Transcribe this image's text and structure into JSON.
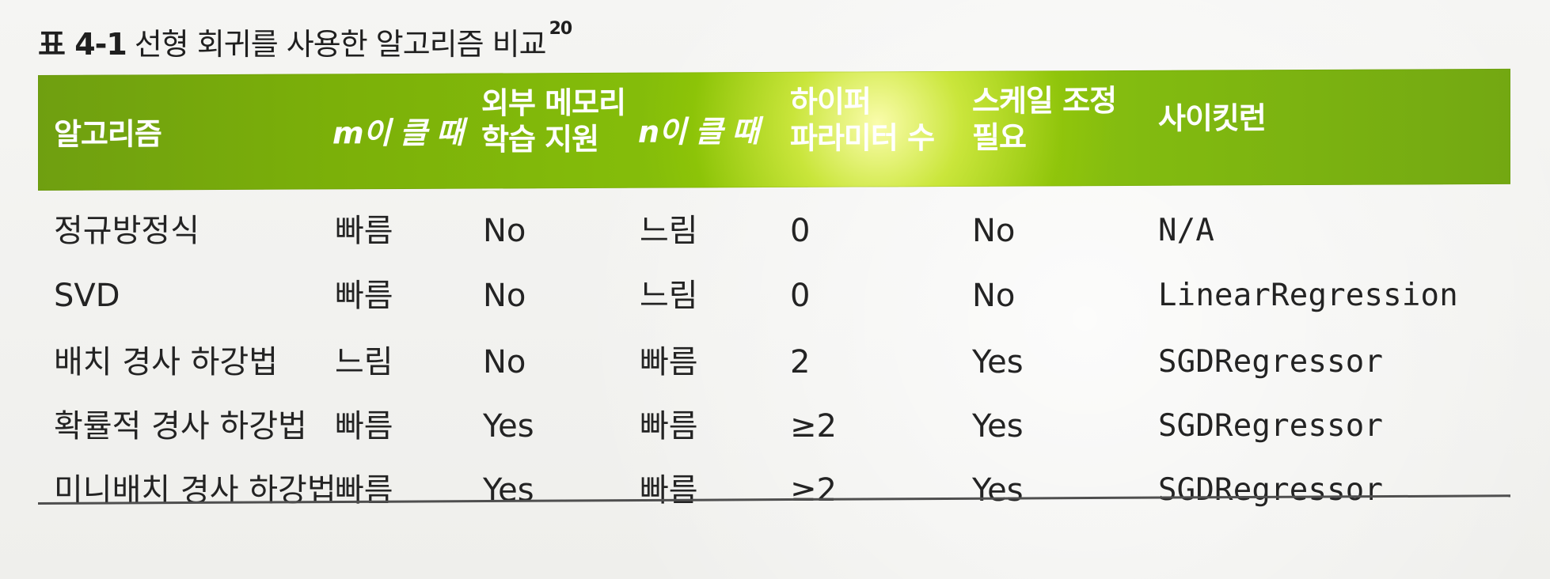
{
  "title": {
    "label": "표 4-1",
    "caption": "선형 회귀를 사용한 알고리즘 비교",
    "footnote": "20"
  },
  "table": {
    "headers": [
      "알고리즘",
      "m이 클 때",
      "외부 메모리\n학습 지원",
      "n이 클 때",
      "하이퍼\n파라미터 수",
      "스케일 조정\n필요",
      "사이킷런"
    ],
    "rows": [
      [
        "정규방정식",
        "빠름",
        "No",
        "느림",
        "0",
        "No",
        "N/A"
      ],
      [
        "SVD",
        "빠름",
        "No",
        "느림",
        "0",
        "No",
        "LinearRegression"
      ],
      [
        "배치 경사 하강법",
        "느림",
        "No",
        "빠름",
        "2",
        "Yes",
        "SGDRegressor"
      ],
      [
        "확률적 경사 하강법",
        "빠름",
        "Yes",
        "빠름",
        "≥2",
        "Yes",
        "SGDRegressor"
      ],
      [
        "미니배치 경사 하강법",
        "빠름",
        "Yes",
        "빠름",
        "≥2",
        "Yes",
        "SGDRegressor"
      ]
    ]
  }
}
